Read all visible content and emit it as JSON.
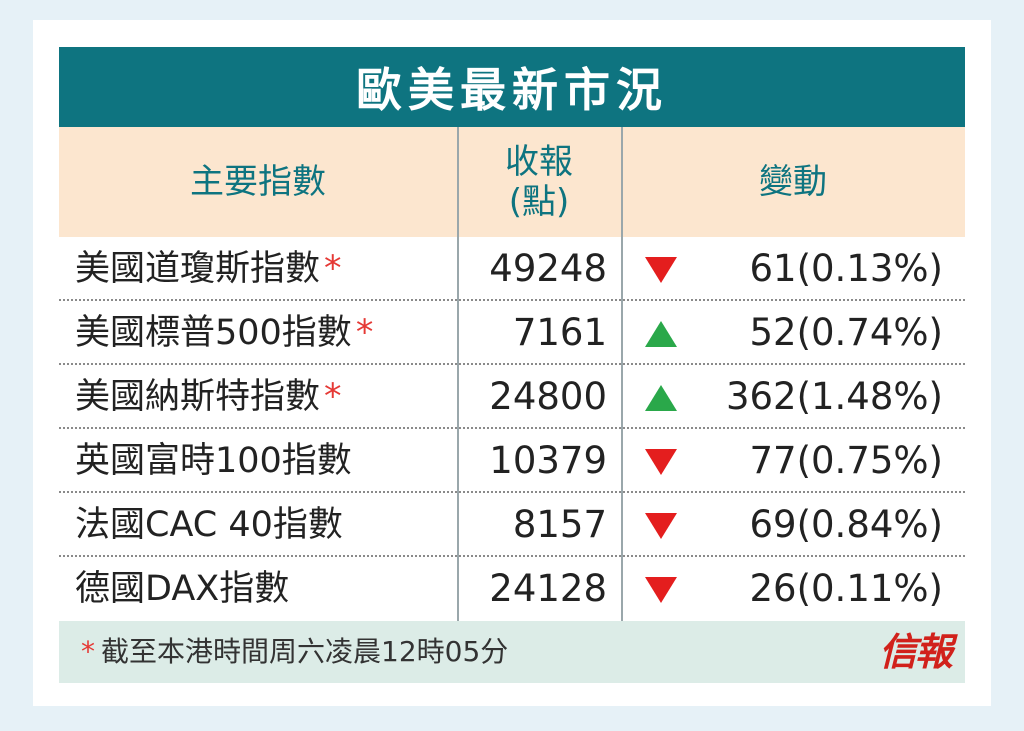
{
  "title": "歐美最新市況",
  "header": {
    "name": "主要指數",
    "close_line1": "收報",
    "close_line2": "(點)",
    "change": "變動"
  },
  "rows": [
    {
      "name": "美國道瓊斯指數",
      "star": "*",
      "close": "49248",
      "dir": "down",
      "change": "61(0.13%)"
    },
    {
      "name": "美國標普500指數",
      "star": "*",
      "close": "7161",
      "dir": "up",
      "change": "52(0.74%)"
    },
    {
      "name": "美國納斯特指數",
      "star": "*",
      "close": "24800",
      "dir": "up",
      "change": "362(1.48%)"
    },
    {
      "name": "英國富時100指數",
      "star": "",
      "close": "10379",
      "dir": "down",
      "change": "77(0.75%)"
    },
    {
      "name": "法國CAC 40指數",
      "star": "",
      "close": "8157",
      "dir": "down",
      "change": "69(0.84%)"
    },
    {
      "name": "德國DAX指數",
      "star": "",
      "close": "24128",
      "dir": "down",
      "change": "26(0.11%)"
    }
  ],
  "footnote": {
    "star": "*",
    "text": "截至本港時間周六凌晨12時05分"
  },
  "logo": "信報",
  "colors": {
    "up": "#2aa84a",
    "down": "#e41e1e",
    "accent": "#0e7480"
  }
}
